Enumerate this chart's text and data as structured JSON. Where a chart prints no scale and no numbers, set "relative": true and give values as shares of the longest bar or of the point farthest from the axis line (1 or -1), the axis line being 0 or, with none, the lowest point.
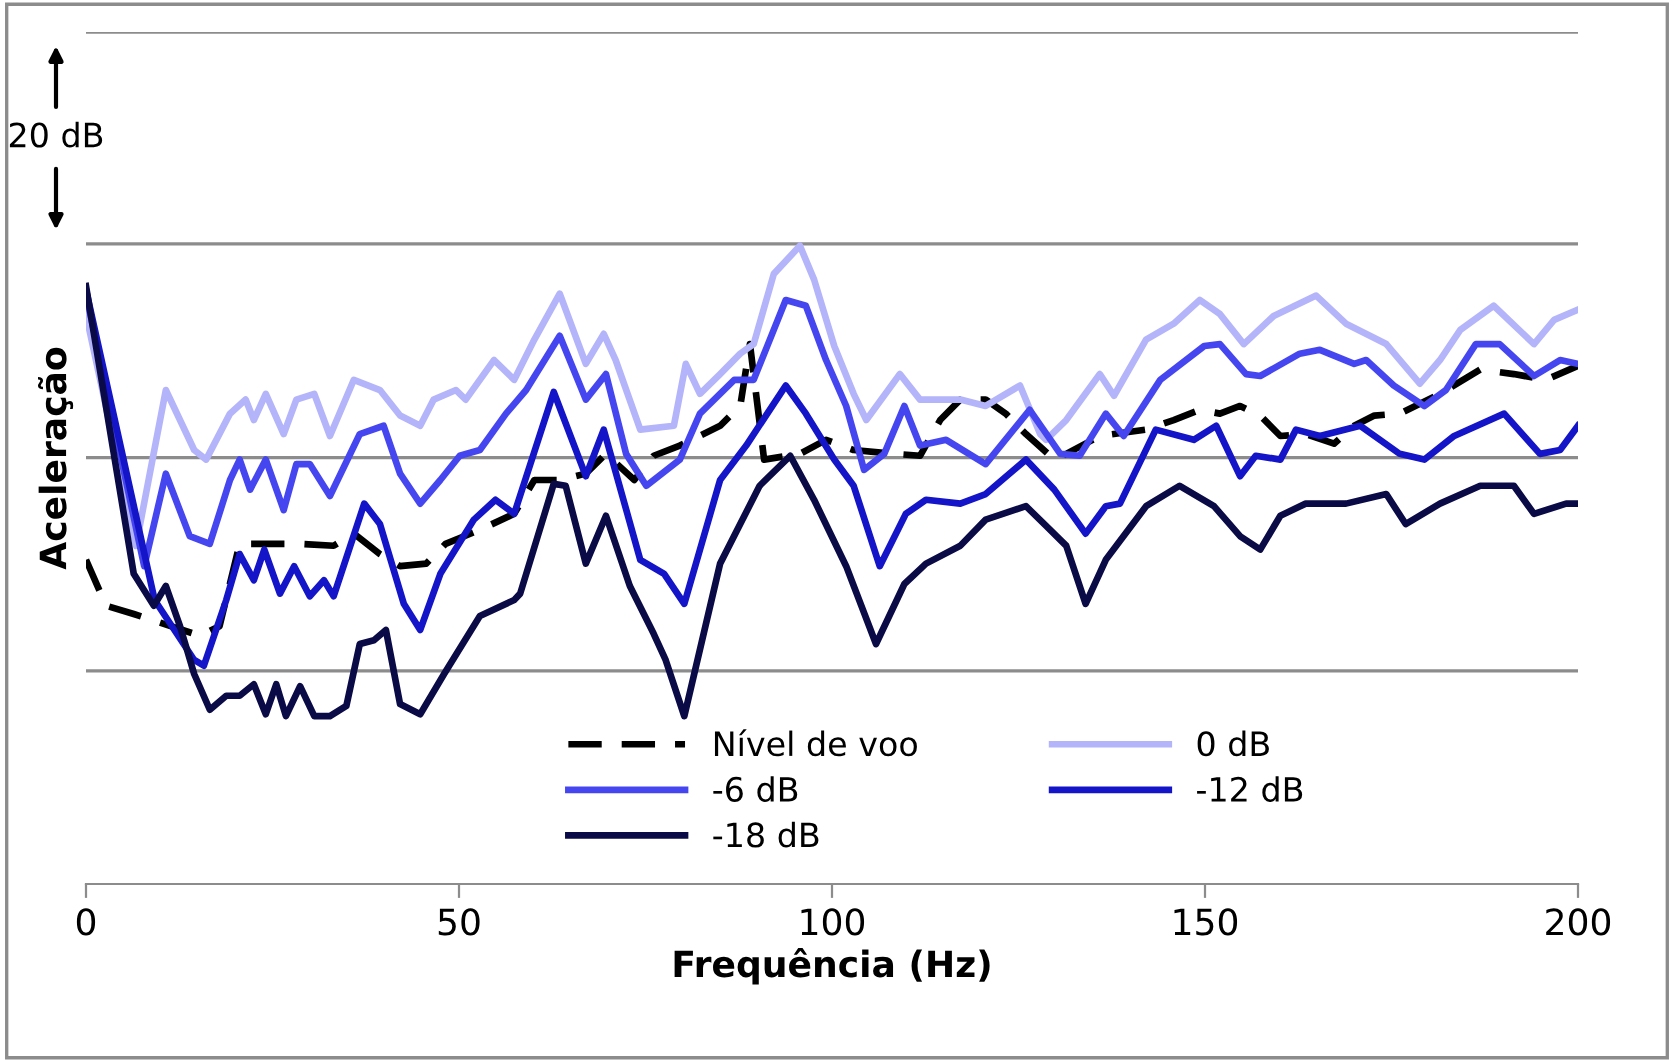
{
  "chart_data": {
    "type": "line",
    "relative": true,
    "xlabel": "Frequência (Hz)",
    "ylabel": "Aceleração",
    "xlim": [
      0,
      200
    ],
    "xticks": [
      0,
      50,
      100,
      150,
      200
    ],
    "legend": "bottom",
    "grid": false,
    "annotations": [
      "20 dB"
    ],
    "ref_lines": [
      {
        "axis": "y",
        "value": 0.334,
        "color": "#8c8c8c"
      },
      {
        "axis": "y",
        "value": 0.668,
        "color": "#8c8c8c"
      },
      {
        "axis": "y",
        "value": 1.003,
        "color": "#8c8c8c"
      },
      {
        "axis": "y",
        "value": 1.335,
        "color": "#8c8c8c"
      }
    ],
    "series": [
      {
        "name": "Nível de voo",
        "color": "#000000",
        "line_style": "dashed",
        "x": [
          0,
          2.7,
          6.4,
          15.3,
          17.9,
          20.6,
          24.1,
          28.7,
          33.2,
          35.9,
          39.4,
          42.1,
          45.6,
          48.2,
          52.8,
          57.4,
          60.1,
          63.5,
          67.0,
          69.7,
          73.5,
          76.1,
          79.6,
          85.0,
          87.7,
          89.0,
          90.9,
          95.7,
          99.2,
          102.9,
          108.3,
          111.8,
          114.5,
          117.2,
          120.6,
          123.3,
          126.0,
          129.8,
          131.4,
          135.9,
          142.1,
          145.8,
          149.3,
          152.0,
          154.7,
          157.4,
          160.1,
          163.5,
          167.3,
          170.0,
          172.7,
          176.1,
          181.5,
          186.9,
          191.4,
          195.7,
          200
        ],
        "values": [
          0.508,
          0.436,
          0.423,
          0.389,
          0.404,
          0.533,
          0.533,
          0.533,
          0.53,
          0.549,
          0.517,
          0.498,
          0.502,
          0.533,
          0.555,
          0.58,
          0.633,
          0.633,
          0.643,
          0.674,
          0.633,
          0.671,
          0.687,
          0.718,
          0.749,
          0.846,
          0.665,
          0.674,
          0.696,
          0.68,
          0.674,
          0.671,
          0.727,
          0.759,
          0.759,
          0.737,
          0.705,
          0.665,
          0.674,
          0.702,
          0.712,
          0.727,
          0.743,
          0.737,
          0.749,
          0.734,
          0.702,
          0.705,
          0.69,
          0.718,
          0.734,
          0.737,
          0.768,
          0.806,
          0.799,
          0.79,
          0.812
        ]
      },
      {
        "name": "0 dB",
        "color": "#b4b4fa",
        "line_style": "solid",
        "x": [
          0,
          6.7,
          10.7,
          14.5,
          16.1,
          19.3,
          21.4,
          22.5,
          24.1,
          26.5,
          28.2,
          30.6,
          32.7,
          35.9,
          39.4,
          42.1,
          44.8,
          46.6,
          49.6,
          50.9,
          54.7,
          57.4,
          60.1,
          63.5,
          67.0,
          69.4,
          71.0,
          74.3,
          78.8,
          80.4,
          82.3,
          85.0,
          87.7,
          89.5,
          92.2,
          95.7,
          97.6,
          100.3,
          102.9,
          104.6,
          109.1,
          111.8,
          117.2,
          120.6,
          125.2,
          127.9,
          128.7,
          131.4,
          135.9,
          137.8,
          142.1,
          145.8,
          149.3,
          152.0,
          155.2,
          159.2,
          164.9,
          168.9,
          174.3,
          178.8,
          181.5,
          184.2,
          188.7,
          194.1,
          196.8,
          200
        ],
        "values": [
          0.893,
          0.53,
          0.774,
          0.68,
          0.665,
          0.737,
          0.759,
          0.727,
          0.768,
          0.705,
          0.759,
          0.768,
          0.702,
          0.79,
          0.774,
          0.734,
          0.718,
          0.759,
          0.774,
          0.759,
          0.821,
          0.79,
          0.853,
          0.925,
          0.815,
          0.862,
          0.821,
          0.712,
          0.718,
          0.815,
          0.768,
          0.799,
          0.831,
          0.846,
          0.956,
          1,
          0.947,
          0.843,
          0.768,
          0.727,
          0.799,
          0.759,
          0.759,
          0.749,
          0.781,
          0.705,
          0.696,
          0.727,
          0.799,
          0.765,
          0.853,
          0.878,
          0.915,
          0.893,
          0.846,
          0.89,
          0.922,
          0.878,
          0.846,
          0.784,
          0.821,
          0.868,
          0.906,
          0.846,
          0.884,
          0.9
        ]
      },
      {
        "name": "-6 dB",
        "color": "#4646f0",
        "line_style": "solid",
        "x": [
          0,
          7.8,
          10.7,
          13.9,
          16.6,
          19.3,
          20.6,
          22.0,
          24.1,
          26.5,
          28.2,
          30.0,
          32.7,
          36.7,
          39.9,
          42.1,
          44.8,
          47.5,
          50.1,
          52.8,
          56.3,
          59.0,
          63.5,
          67.0,
          69.7,
          72.4,
          75.1,
          79.6,
          82.3,
          86.9,
          89.5,
          93.8,
          96.5,
          99.2,
          101.9,
          104.3,
          107.0,
          109.7,
          111.8,
          115.3,
          120.6,
          126.5,
          130.6,
          133.2,
          136.7,
          139.1,
          144.0,
          149.9,
          152.0,
          155.5,
          157.4,
          162.7,
          165.4,
          170.0,
          171.6,
          175.3,
          179.4,
          182.3,
          186.3,
          189.5,
          194.1,
          197.6,
          200
        ],
        "values": [
          0.925,
          0.498,
          0.643,
          0.545,
          0.533,
          0.633,
          0.665,
          0.618,
          0.665,
          0.586,
          0.658,
          0.658,
          0.608,
          0.705,
          0.718,
          0.643,
          0.596,
          0.633,
          0.671,
          0.68,
          0.737,
          0.774,
          0.859,
          0.759,
          0.799,
          0.674,
          0.624,
          0.665,
          0.737,
          0.79,
          0.79,
          0.915,
          0.906,
          0.821,
          0.749,
          0.649,
          0.674,
          0.749,
          0.687,
          0.696,
          0.658,
          0.743,
          0.674,
          0.671,
          0.737,
          0.702,
          0.79,
          0.843,
          0.846,
          0.799,
          0.796,
          0.831,
          0.837,
          0.815,
          0.821,
          0.781,
          0.749,
          0.774,
          0.846,
          0.846,
          0.796,
          0.821,
          0.815
        ]
      },
      {
        "name": "-12 dB",
        "color": "#1414c8",
        "line_style": "solid",
        "x": [
          0,
          9.2,
          14.5,
          15.8,
          18.8,
          20.6,
          22.5,
          23.9,
          26.0,
          27.9,
          30.0,
          31.9,
          33.2,
          37.3,
          39.4,
          42.6,
          44.8,
          47.5,
          52.0,
          54.9,
          57.4,
          62.7,
          67.0,
          69.4,
          74.3,
          77.5,
          80.2,
          85.0,
          88.5,
          93.8,
          96.5,
          100.3,
          102.9,
          106.4,
          109.9,
          112.6,
          117.2,
          120.6,
          126.0,
          129.8,
          134.0,
          136.7,
          138.6,
          143.4,
          148.5,
          151.5,
          154.7,
          156.8,
          160.1,
          162.2,
          165.4,
          170.8,
          176.1,
          179.4,
          183.4,
          190.1,
          194.9,
          197.6,
          200
        ],
        "values": [
          0.931,
          0.445,
          0.351,
          0.342,
          0.445,
          0.517,
          0.476,
          0.524,
          0.455,
          0.498,
          0.451,
          0.476,
          0.451,
          0.596,
          0.564,
          0.439,
          0.398,
          0.486,
          0.571,
          0.602,
          0.58,
          0.771,
          0.639,
          0.712,
          0.508,
          0.486,
          0.439,
          0.633,
          0.687,
          0.781,
          0.737,
          0.665,
          0.624,
          0.498,
          0.58,
          0.602,
          0.596,
          0.611,
          0.665,
          0.618,
          0.549,
          0.592,
          0.596,
          0.712,
          0.696,
          0.718,
          0.639,
          0.671,
          0.665,
          0.712,
          0.702,
          0.718,
          0.674,
          0.665,
          0.702,
          0.737,
          0.674,
          0.68,
          0.718
        ]
      },
      {
        "name": "-18 dB",
        "color": "#0a0a46",
        "line_style": "solid",
        "x": [
          0,
          6.4,
          9.1,
          10.7,
          12.6,
          14.5,
          16.6,
          18.8,
          20.6,
          22.5,
          24.1,
          25.5,
          26.8,
          28.7,
          30.6,
          32.7,
          34.9,
          36.7,
          38.6,
          40.2,
          42.1,
          44.8,
          48.0,
          52.8,
          57.4,
          58.2,
          62.7,
          64.3,
          67.0,
          69.7,
          72.9,
          76.1,
          77.7,
          80.2,
          85.0,
          90.3,
          94.4,
          97.6,
          101.9,
          105.9,
          109.7,
          112.6,
          117.2,
          120.6,
          126.0,
          128.7,
          131.4,
          134.0,
          136.7,
          142.1,
          146.6,
          151.2,
          154.7,
          157.4,
          160.1,
          163.5,
          168.9,
          174.3,
          176.9,
          181.5,
          186.9,
          191.4,
          194.1,
          198.4,
          200
        ],
        "values": [
          0.937,
          0.486,
          0.436,
          0.467,
          0.404,
          0.329,
          0.273,
          0.295,
          0.295,
          0.313,
          0.266,
          0.313,
          0.263,
          0.31,
          0.263,
          0.263,
          0.279,
          0.376,
          0.382,
          0.398,
          0.282,
          0.266,
          0.329,
          0.42,
          0.445,
          0.455,
          0.627,
          0.624,
          0.502,
          0.577,
          0.467,
          0.392,
          0.351,
          0.263,
          0.502,
          0.624,
          0.671,
          0.602,
          0.498,
          0.376,
          0.47,
          0.502,
          0.53,
          0.571,
          0.592,
          0.561,
          0.53,
          0.439,
          0.508,
          0.592,
          0.624,
          0.592,
          0.545,
          0.524,
          0.577,
          0.596,
          0.596,
          0.611,
          0.564,
          0.596,
          0.624,
          0.624,
          0.58,
          0.596,
          0.596
        ]
      }
    ]
  }
}
